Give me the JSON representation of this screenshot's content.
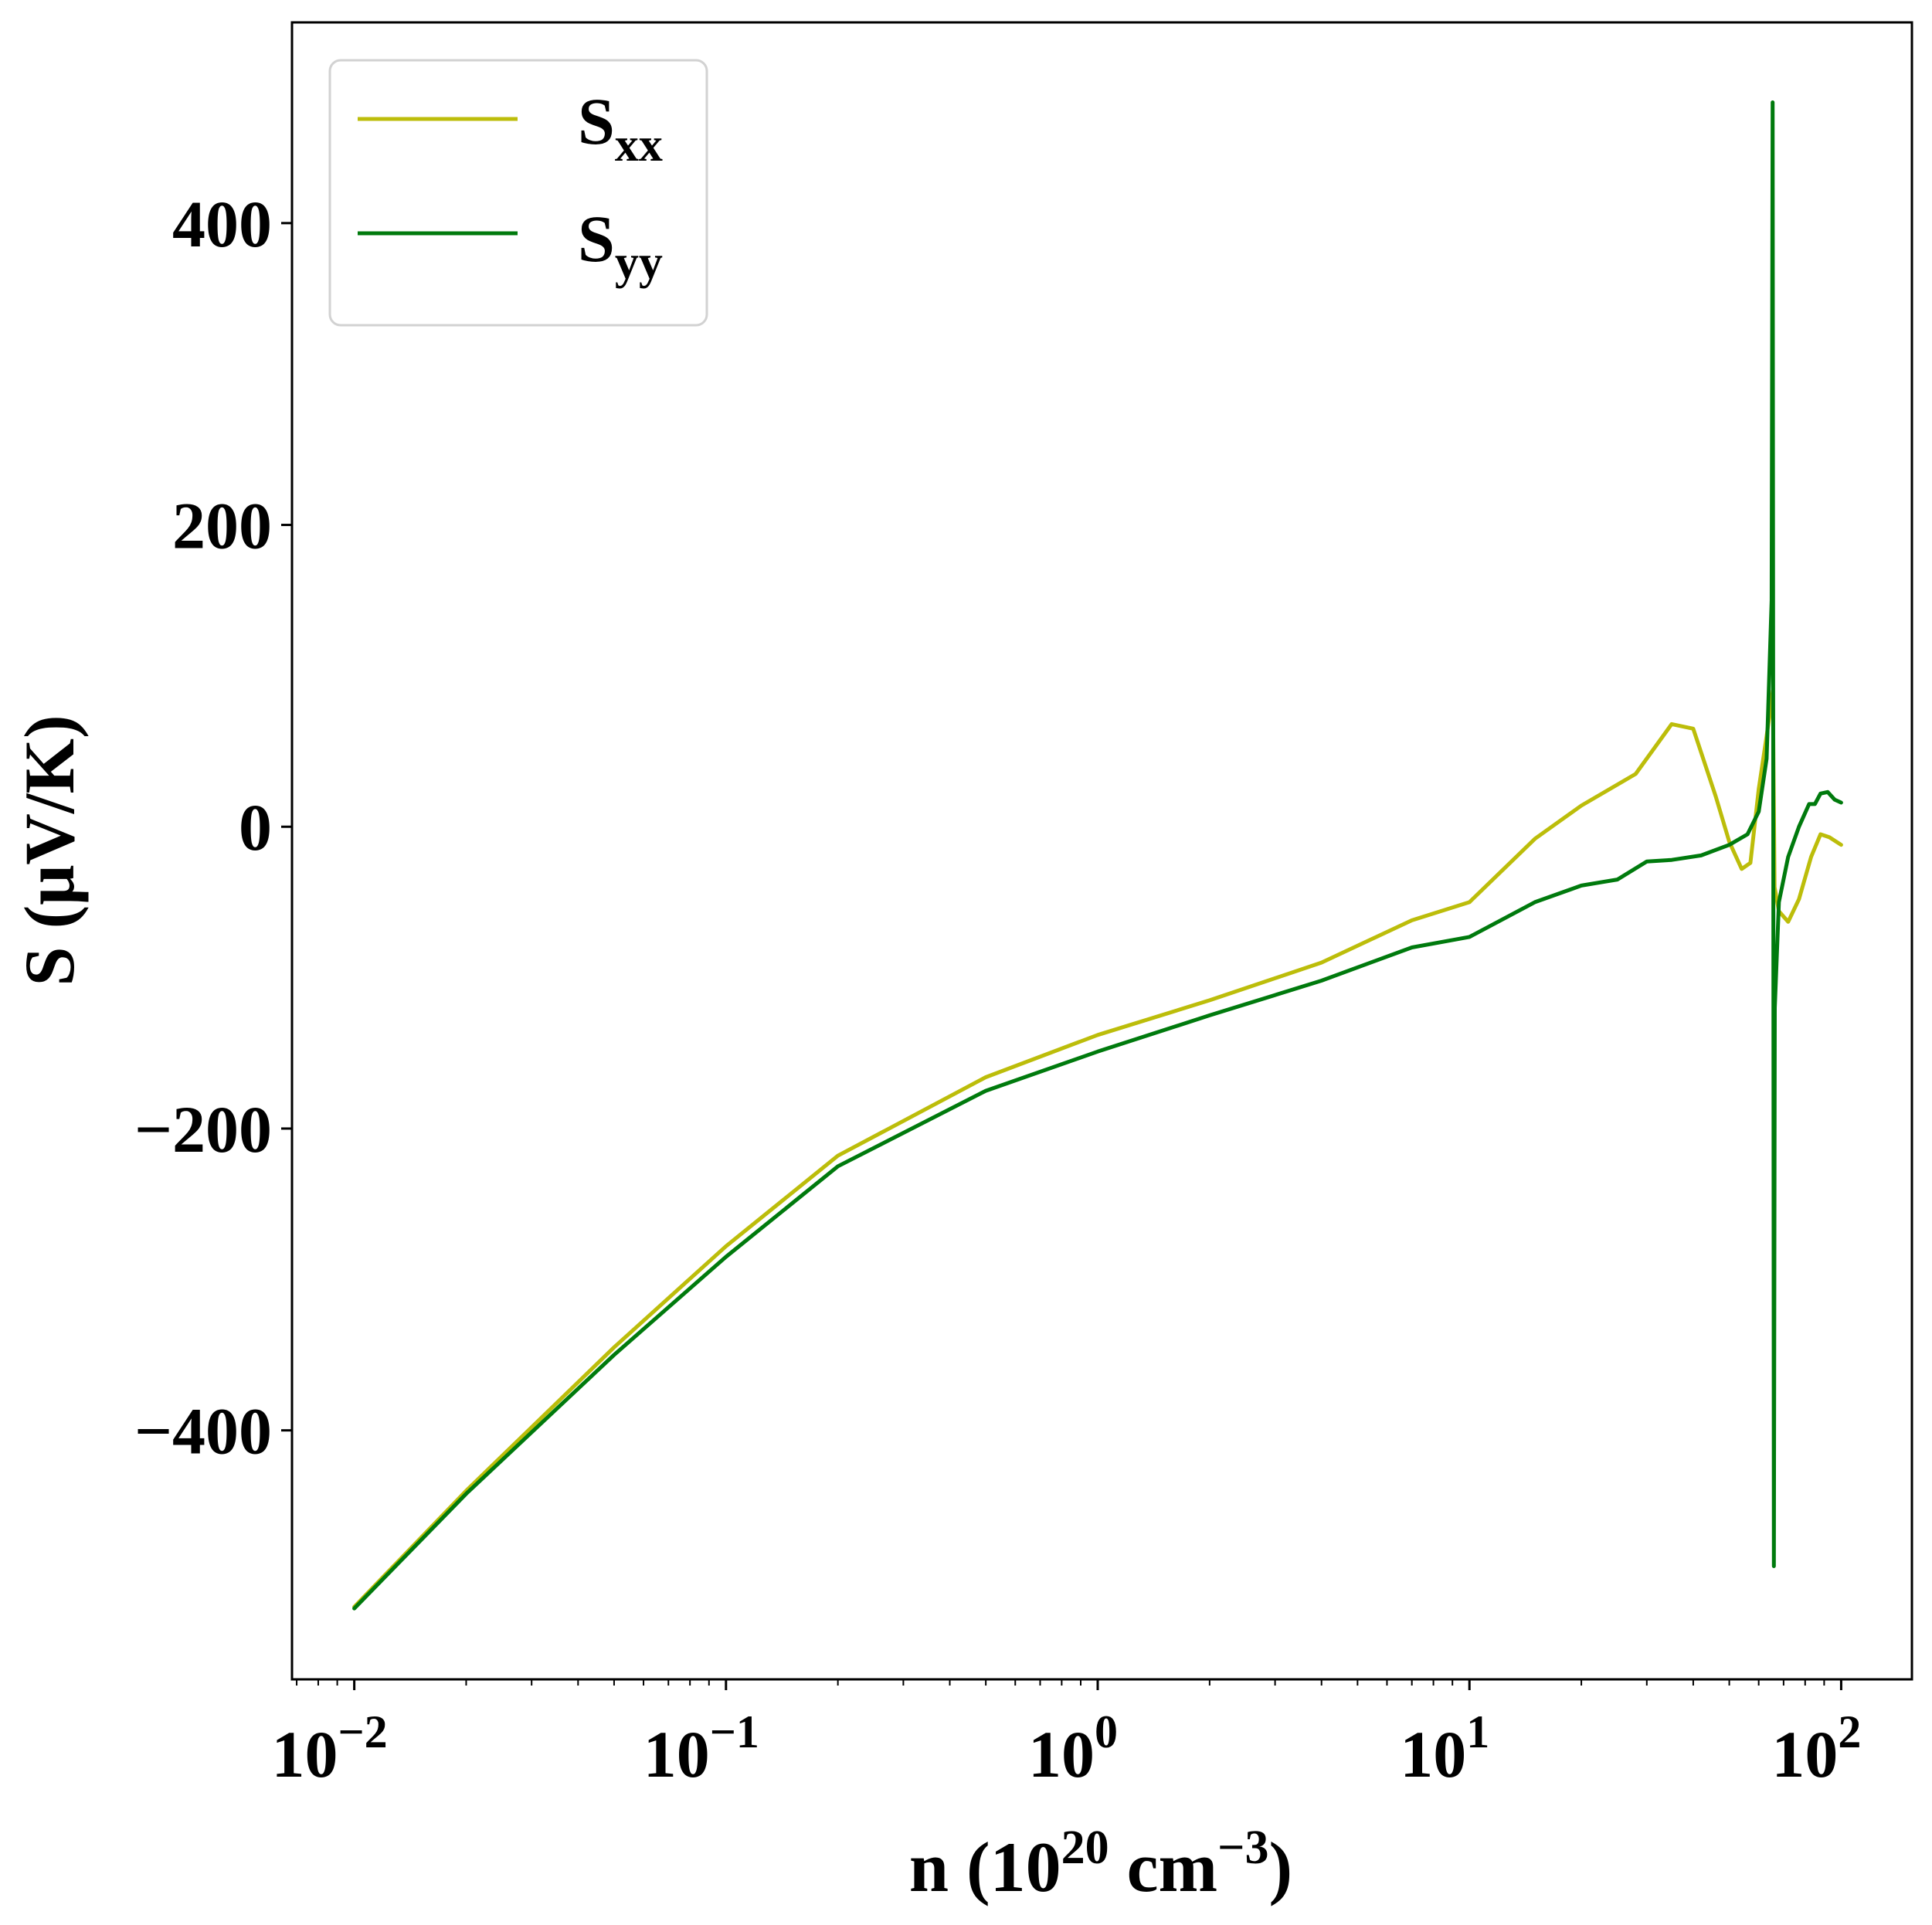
{
  "chart_data": {
    "type": "line",
    "title": "",
    "xlabel": {
      "base": "n (10",
      "sup1": "20",
      "mid": " cm",
      "sup2": "−3",
      "end": ")"
    },
    "ylabel": "S (μV/K)",
    "xscale": "log",
    "xlim": [
      0.0068,
      155
    ],
    "ylim": [
      -565,
      533
    ],
    "grid": false,
    "legend_position": "top-left",
    "x_ticks": [
      {
        "value": 0.01,
        "base": "10",
        "exp": "−2"
      },
      {
        "value": 0.1,
        "base": "10",
        "exp": "−1"
      },
      {
        "value": 1,
        "base": "10",
        "exp": "0"
      },
      {
        "value": 10,
        "base": "10",
        "exp": "1"
      },
      {
        "value": 100,
        "base": "10",
        "exp": "2"
      }
    ],
    "y_ticks": [
      {
        "value": 400,
        "label": "400"
      },
      {
        "value": 200,
        "label": "200"
      },
      {
        "value": 0,
        "label": "0"
      },
      {
        "value": -200,
        "label": "−200"
      },
      {
        "value": -400,
        "label": "−400"
      }
    ],
    "series": [
      {
        "name": "S_xx",
        "label_main": "S",
        "label_sub": "xx",
        "color": "#bcbd0a",
        "points": [
          [
            0.01,
            -517
          ],
          [
            0.02,
            -440
          ],
          [
            0.05,
            -345
          ],
          [
            0.1,
            -278
          ],
          [
            0.2,
            -218
          ],
          [
            0.5,
            -166
          ],
          [
            1,
            -138
          ],
          [
            2,
            -115
          ],
          [
            4,
            -90
          ],
          [
            7,
            -62
          ],
          [
            10,
            -50
          ],
          [
            15,
            -8
          ],
          [
            20,
            14
          ],
          [
            28,
            35
          ],
          [
            35,
            68
          ],
          [
            40,
            65
          ],
          [
            46,
            20
          ],
          [
            50,
            -10
          ],
          [
            54,
            -28
          ],
          [
            57,
            -24
          ],
          [
            60,
            25
          ],
          [
            63,
            60
          ],
          [
            65.5,
            90
          ],
          [
            66.2,
            -40
          ],
          [
            68,
            -56
          ],
          [
            72,
            -63
          ],
          [
            77,
            -48
          ],
          [
            83,
            -20
          ],
          [
            88,
            -5
          ],
          [
            93,
            -7
          ],
          [
            100,
            -12
          ]
        ]
      },
      {
        "name": "S_yy",
        "label_main": "S",
        "label_sub": "yy",
        "color": "#007a0d",
        "points": [
          [
            0.01,
            -518
          ],
          [
            0.02,
            -442
          ],
          [
            0.05,
            -350
          ],
          [
            0.1,
            -285
          ],
          [
            0.2,
            -225
          ],
          [
            0.5,
            -175
          ],
          [
            1,
            -149
          ],
          [
            2,
            -125
          ],
          [
            4,
            -102
          ],
          [
            7,
            -80
          ],
          [
            10,
            -73
          ],
          [
            15,
            -50
          ],
          [
            20,
            -39
          ],
          [
            25,
            -35
          ],
          [
            30,
            -23
          ],
          [
            35,
            -22
          ],
          [
            42,
            -19
          ],
          [
            50,
            -12
          ],
          [
            56,
            -5
          ],
          [
            60,
            10
          ],
          [
            63,
            45
          ],
          [
            65,
            150
          ],
          [
            65.4,
            480
          ],
          [
            65.6,
            150
          ],
          [
            65.9,
            -490
          ],
          [
            66.3,
            -120
          ],
          [
            68,
            -50
          ],
          [
            72,
            -20
          ],
          [
            77,
            0
          ],
          [
            82,
            15
          ],
          [
            85,
            15
          ],
          [
            88,
            22
          ],
          [
            92,
            23
          ],
          [
            96,
            18
          ],
          [
            100,
            16
          ]
        ]
      }
    ]
  }
}
